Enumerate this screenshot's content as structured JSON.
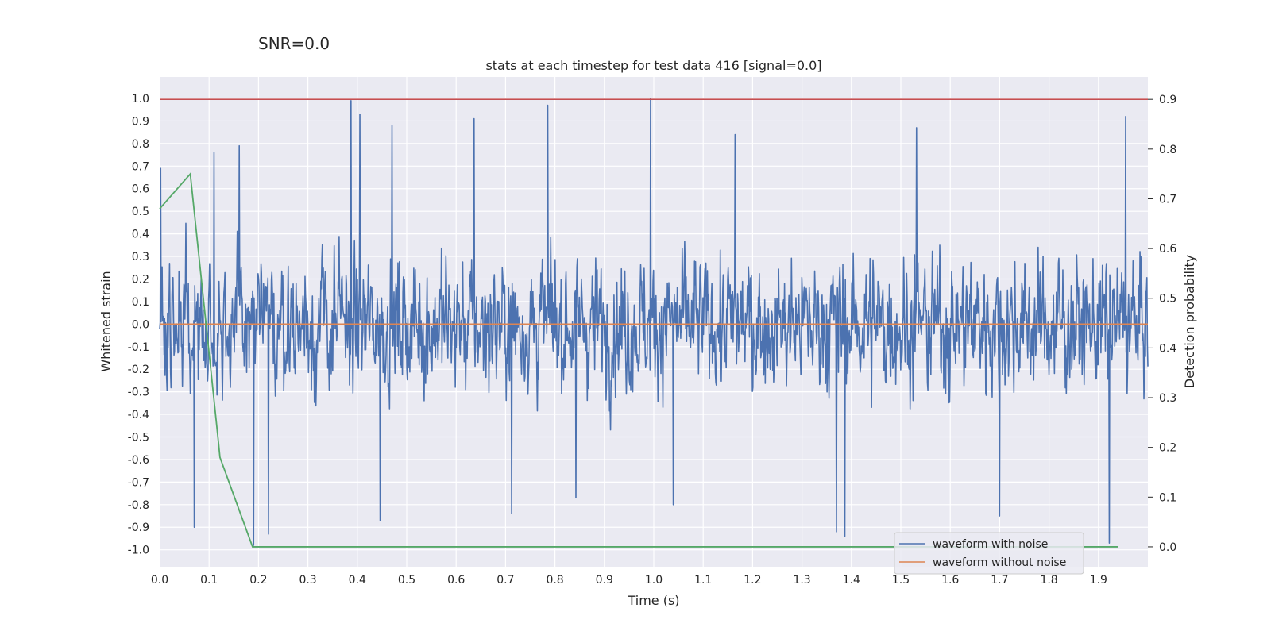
{
  "suptitle": "SNR=0.0",
  "chart_data": {
    "type": "line",
    "title": "stats at each timestep for test data 416 [signal=0.0]",
    "xlabel": "Time (s)",
    "ylabel": "Whitened strain",
    "y2label": "Detection probability",
    "xlim": [
      0.0,
      2.0
    ],
    "ylim": [
      -1.075,
      1.095
    ],
    "y2lim": [
      -0.04,
      0.945
    ],
    "xticks": [
      "0.0",
      "0.1",
      "0.2",
      "0.3",
      "0.4",
      "0.5",
      "0.6",
      "0.7",
      "0.8",
      "0.9",
      "1.0",
      "1.1",
      "1.2",
      "1.3",
      "1.4",
      "1.5",
      "1.6",
      "1.7",
      "1.8",
      "1.9"
    ],
    "yticks": [
      "1.0",
      "0.9",
      "0.8",
      "0.7",
      "0.6",
      "0.5",
      "0.4",
      "0.3",
      "0.2",
      "0.1",
      "0.0",
      "-0.1",
      "-0.2",
      "-0.3",
      "-0.4",
      "-0.5",
      "-0.6",
      "-0.7",
      "-0.8",
      "-0.9",
      "-1.0"
    ],
    "y2ticks": [
      "0.9",
      "0.8",
      "0.7",
      "0.6",
      "0.5",
      "0.4",
      "0.3",
      "0.2",
      "0.1",
      "0.0"
    ],
    "threshold": {
      "value": 0.9,
      "axis": "right",
      "color": "#c44e52"
    },
    "series": [
      {
        "name": "waveform with noise",
        "axis": "left",
        "color": "#4c72b0",
        "kind": "noise",
        "n_samples": 2000,
        "peaks": [
          {
            "t": 0.002,
            "v": 0.69
          },
          {
            "t": 0.11,
            "v": 0.76
          },
          {
            "t": 0.161,
            "v": 0.79
          },
          {
            "t": 0.387,
            "v": 0.99
          },
          {
            "t": 0.405,
            "v": 0.93
          },
          {
            "t": 0.47,
            "v": 0.88
          },
          {
            "t": 0.636,
            "v": 0.91
          },
          {
            "t": 0.785,
            "v": 0.97
          },
          {
            "t": 0.993,
            "v": 1.0
          },
          {
            "t": 1.165,
            "v": 0.84
          },
          {
            "t": 1.532,
            "v": 0.87
          },
          {
            "t": 1.955,
            "v": 0.92
          },
          {
            "t": 0.07,
            "v": -0.9
          },
          {
            "t": 0.19,
            "v": -0.98
          },
          {
            "t": 0.22,
            "v": -0.93
          },
          {
            "t": 0.446,
            "v": -0.87
          },
          {
            "t": 0.712,
            "v": -0.84
          },
          {
            "t": 0.842,
            "v": -0.77
          },
          {
            "t": 1.04,
            "v": -0.8
          },
          {
            "t": 1.37,
            "v": -0.92
          },
          {
            "t": 1.387,
            "v": -0.94
          },
          {
            "t": 1.7,
            "v": -0.85
          },
          {
            "t": 1.922,
            "v": -0.97
          }
        ]
      },
      {
        "name": "waveform without noise",
        "axis": "left",
        "color": "#dd8452",
        "kind": "line",
        "x": [
          0.0,
          2.0
        ],
        "y": [
          0.0,
          0.0
        ]
      },
      {
        "name": "Detection probability",
        "axis": "right",
        "color": "#55a868",
        "kind": "line",
        "x": [
          0.0,
          0.062,
          0.119,
          0.122,
          0.188,
          0.25,
          1.0,
          1.5,
          1.94
        ],
        "y": [
          0.68,
          0.75,
          0.21,
          0.18,
          0.0,
          0.0,
          0.0,
          0.0,
          0.0
        ]
      }
    ],
    "legend": {
      "position": "lower-right",
      "entries": [
        {
          "label": "waveform with noise",
          "color": "#4c72b0"
        },
        {
          "label": "waveform without noise",
          "color": "#dd8452"
        }
      ]
    }
  }
}
